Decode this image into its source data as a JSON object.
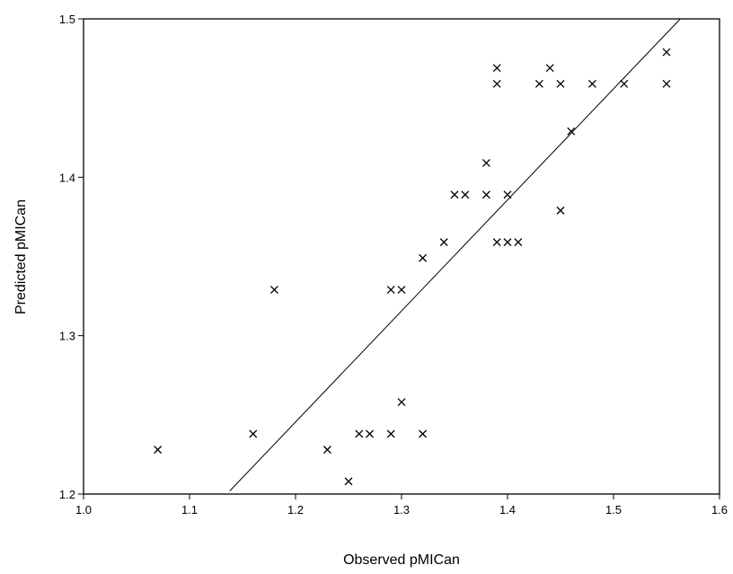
{
  "chart_data": {
    "type": "scatter",
    "title": "",
    "xlabel": "Observed pMICan",
    "ylabel": "Predicted  pMICan",
    "xlim": [
      1.0,
      1.6
    ],
    "ylim": [
      1.2,
      1.5
    ],
    "xticks": [
      "1.0",
      "1.1",
      "1.2",
      "1.3",
      "1.4",
      "1.5",
      "1.6"
    ],
    "yticks": [
      "1.2",
      "1.3",
      "1.4",
      "1.5"
    ],
    "grid": false,
    "legend": "none",
    "marker": "x",
    "points": [
      {
        "x": 1.07,
        "y": 1.228
      },
      {
        "x": 1.16,
        "y": 1.238
      },
      {
        "x": 1.18,
        "y": 1.329
      },
      {
        "x": 1.23,
        "y": 1.228
      },
      {
        "x": 1.25,
        "y": 1.208
      },
      {
        "x": 1.26,
        "y": 1.238
      },
      {
        "x": 1.27,
        "y": 1.238
      },
      {
        "x": 1.29,
        "y": 1.238
      },
      {
        "x": 1.29,
        "y": 1.329
      },
      {
        "x": 1.3,
        "y": 1.329
      },
      {
        "x": 1.3,
        "y": 1.258
      },
      {
        "x": 1.32,
        "y": 1.238
      },
      {
        "x": 1.32,
        "y": 1.349
      },
      {
        "x": 1.34,
        "y": 1.359
      },
      {
        "x": 1.35,
        "y": 1.389
      },
      {
        "x": 1.36,
        "y": 1.389
      },
      {
        "x": 1.38,
        "y": 1.409
      },
      {
        "x": 1.38,
        "y": 1.389
      },
      {
        "x": 1.39,
        "y": 1.469
      },
      {
        "x": 1.39,
        "y": 1.459
      },
      {
        "x": 1.39,
        "y": 1.359
      },
      {
        "x": 1.4,
        "y": 1.389
      },
      {
        "x": 1.4,
        "y": 1.359
      },
      {
        "x": 1.41,
        "y": 1.359
      },
      {
        "x": 1.43,
        "y": 1.459
      },
      {
        "x": 1.44,
        "y": 1.469
      },
      {
        "x": 1.45,
        "y": 1.459
      },
      {
        "x": 1.45,
        "y": 1.379
      },
      {
        "x": 1.46,
        "y": 1.429
      },
      {
        "x": 1.48,
        "y": 1.459
      },
      {
        "x": 1.51,
        "y": 1.459
      },
      {
        "x": 1.55,
        "y": 1.479
      },
      {
        "x": 1.55,
        "y": 1.459
      }
    ],
    "fit_line": {
      "x": [
        1.138,
        1.563
      ],
      "y": [
        1.202,
        1.5
      ]
    }
  }
}
